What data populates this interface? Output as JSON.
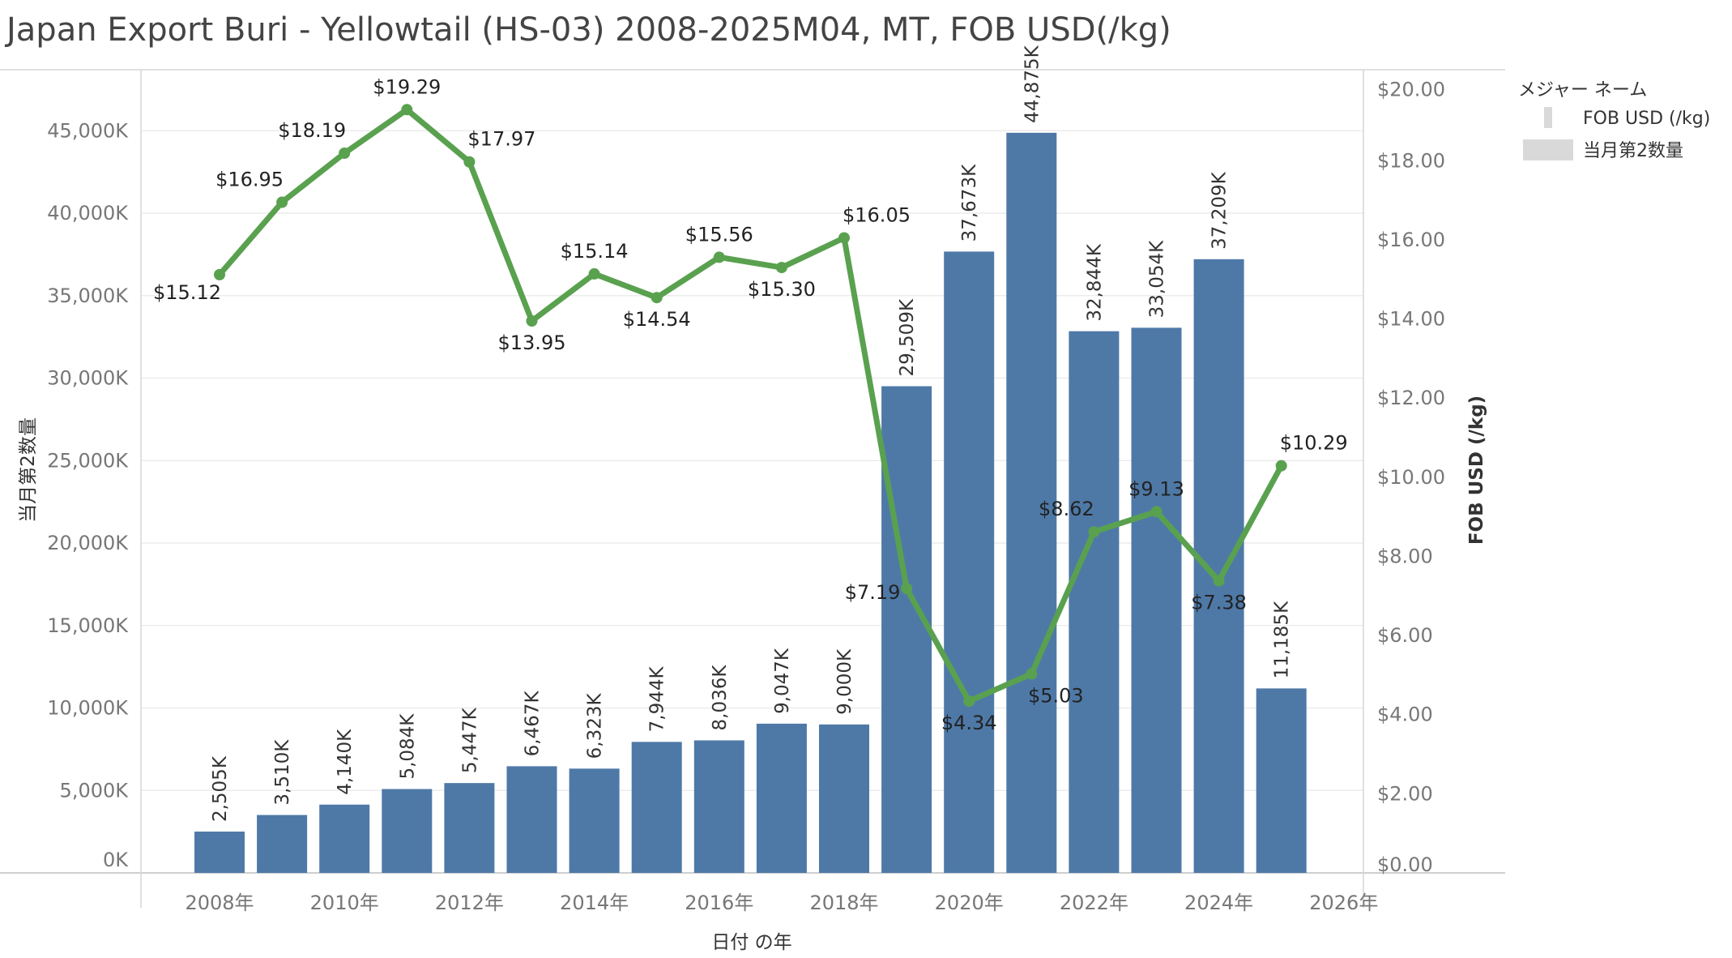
{
  "title": "Japan Export Buri - Yellowtail (HS-03) 2008-2025M04, MT, FOB USD(/kg)",
  "legend": {
    "title": "メジャー ネーム",
    "items": [
      {
        "label": "FOB USD (/kg)",
        "swatch": "thin",
        "color": "#d9d9d9"
      },
      {
        "label": "当月第2数量",
        "swatch": "wide",
        "color": "#d9d9d9"
      }
    ]
  },
  "chart_data": {
    "type": "bar+line",
    "xlabel": "日付 の年",
    "ylabel_left": "当月第2数量",
    "ylabel_right": "FOB USD (/kg)",
    "x_ticks": [
      "2008年",
      "2010年",
      "2012年",
      "2014年",
      "2016年",
      "2018年",
      "2020年",
      "2022年",
      "2024年",
      "2026年"
    ],
    "x_tick_years": [
      2008,
      2010,
      2012,
      2014,
      2016,
      2018,
      2020,
      2022,
      2024,
      2026
    ],
    "y_left_ticks": [
      "0K",
      "5,000K",
      "10,000K",
      "15,000K",
      "20,000K",
      "25,000K",
      "30,000K",
      "35,000K",
      "40,000K",
      "45,000K"
    ],
    "y_left_tick_values": [
      0,
      5000,
      10000,
      15000,
      20000,
      25000,
      30000,
      35000,
      40000,
      45000
    ],
    "y_right_ticks": [
      "$0.00",
      "$2.00",
      "$4.00",
      "$6.00",
      "$8.00",
      "$10.00",
      "$12.00",
      "$14.00",
      "$16.00",
      "$18.00",
      "$20.00"
    ],
    "y_right_tick_values": [
      0,
      2,
      4,
      6,
      8,
      10,
      12,
      14,
      16,
      18,
      20
    ],
    "categories": [
      2008,
      2009,
      2010,
      2011,
      2012,
      2013,
      2014,
      2015,
      2016,
      2017,
      2018,
      2019,
      2020,
      2021,
      2022,
      2023,
      2024,
      2025
    ],
    "series": [
      {
        "name": "当月第2数量",
        "type": "bar",
        "color": "#4e79a7",
        "values": [
          2505,
          3510,
          4140,
          5084,
          5447,
          6467,
          6323,
          7944,
          8036,
          9047,
          9000,
          29509,
          37673,
          44875,
          32844,
          33054,
          37209,
          11185
        ],
        "labels": [
          "2,505K",
          "3,510K",
          "4,140K",
          "5,084K",
          "5,447K",
          "6,467K",
          "6,323K",
          "7,944K",
          "8,036K",
          "9,047K",
          "9,000K",
          "29,509K",
          "37,673K",
          "44,875K",
          "32,844K",
          "33,054K",
          "37,209K",
          "11,185K"
        ]
      },
      {
        "name": "FOB USD (/kg)",
        "type": "line",
        "color": "#59a14f",
        "values": [
          15.12,
          16.95,
          18.19,
          19.29,
          17.97,
          13.95,
          15.14,
          14.54,
          15.56,
          15.3,
          16.05,
          7.19,
          4.34,
          5.03,
          8.62,
          9.13,
          7.38,
          10.29
        ],
        "labels": [
          "$15.12",
          "$16.95",
          "$18.19",
          "$19.29",
          "$17.97",
          "$13.95",
          "$15.14",
          "$14.54",
          "$15.56",
          "$15.30",
          "$16.05",
          "$7.19",
          "$4.34",
          "$5.03",
          "$8.62",
          "$9.13",
          "$7.38",
          "$10.29"
        ]
      }
    ],
    "y_left_range": [
      0,
      48700
    ],
    "y_right_range": [
      0,
      20.3
    ],
    "grid": true
  }
}
